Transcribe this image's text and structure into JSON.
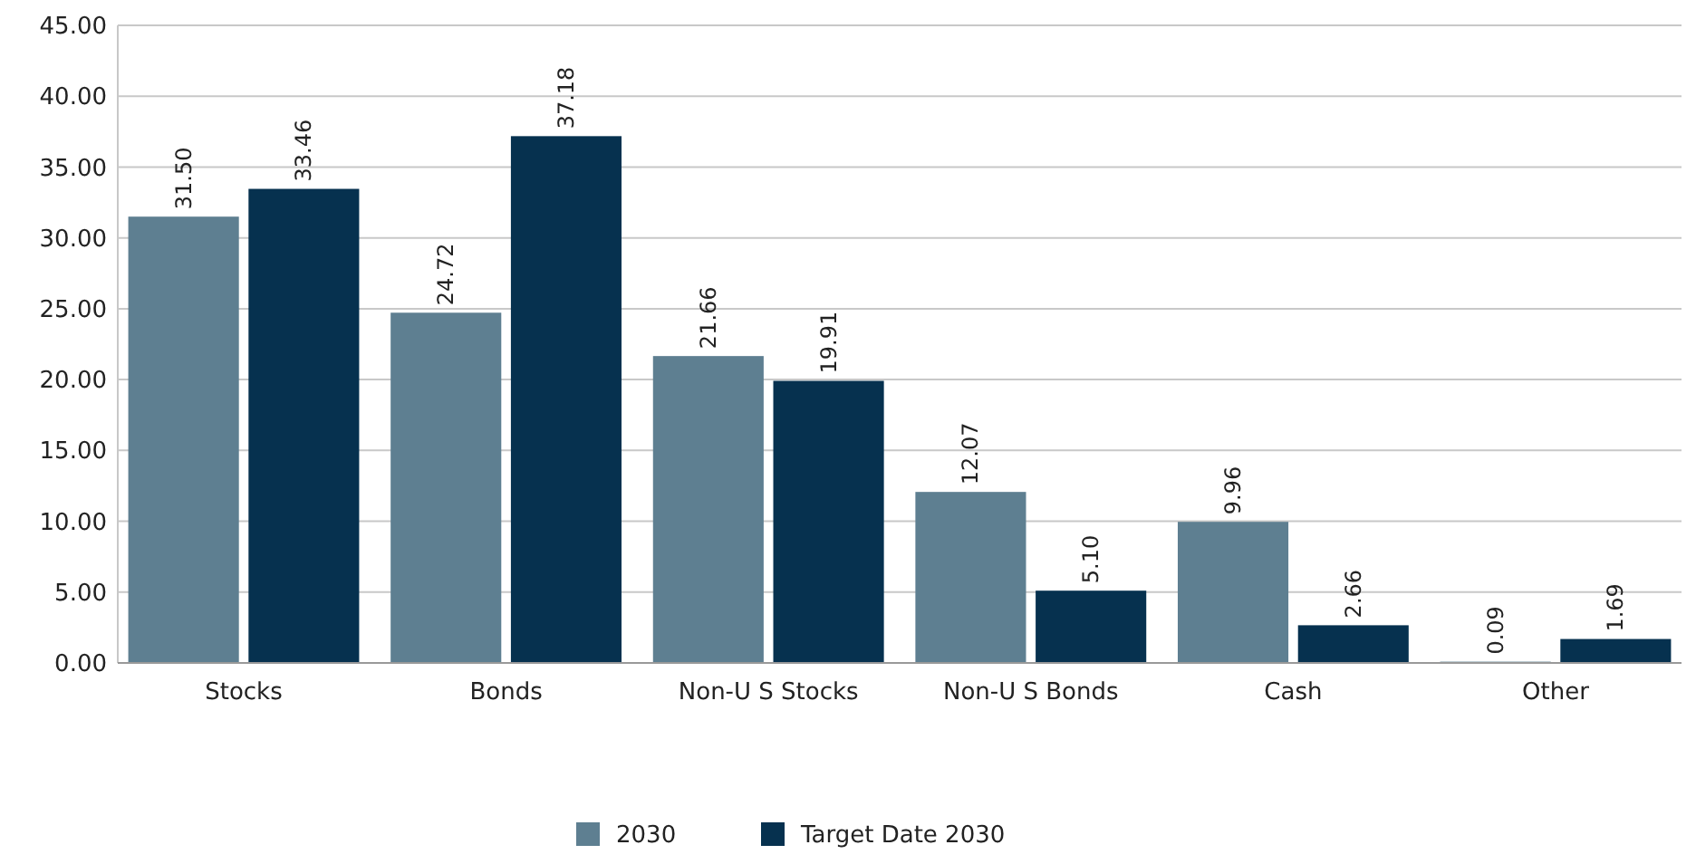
{
  "chart_data": {
    "type": "bar",
    "categories": [
      "Stocks",
      "Bonds",
      "Non-U S Stocks",
      "Non-U S Bonds",
      "Cash",
      "Other"
    ],
    "series": [
      {
        "name": "2030",
        "color": "#5e7f91",
        "values": [
          31.5,
          24.72,
          21.66,
          12.07,
          9.96,
          0.09
        ],
        "value_labels": [
          "31.50",
          "24.72",
          "21.66",
          "12.07",
          "9.96",
          "0.09"
        ]
      },
      {
        "name": "Target Date 2030",
        "color": "#06314f",
        "values": [
          33.46,
          37.18,
          19.91,
          5.1,
          2.66,
          1.69
        ],
        "value_labels": [
          "33.46",
          "37.18",
          "19.91",
          "5.10",
          "2.66",
          "1.69"
        ]
      }
    ],
    "ylim": [
      0,
      45
    ],
    "yticks": [
      {
        "value": 0,
        "label": "0.00"
      },
      {
        "value": 5,
        "label": "5.00"
      },
      {
        "value": 10,
        "label": "10.00"
      },
      {
        "value": 15,
        "label": "15.00"
      },
      {
        "value": 20,
        "label": "20.00"
      },
      {
        "value": 25,
        "label": "25.00"
      },
      {
        "value": 30,
        "label": "30.00"
      },
      {
        "value": 35,
        "label": "35.00"
      },
      {
        "value": 40,
        "label": "40.00"
      },
      {
        "value": 45,
        "label": "45.00"
      }
    ],
    "grid": "y",
    "legend": "bottom"
  }
}
